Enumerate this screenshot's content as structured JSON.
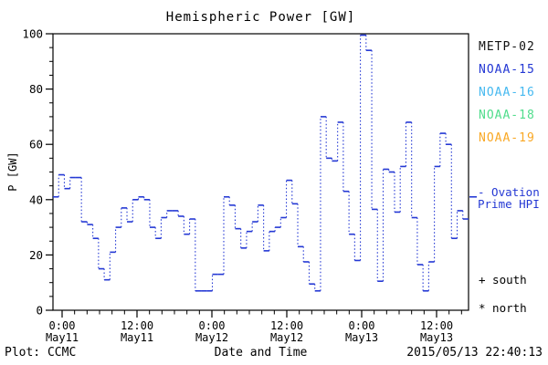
{
  "title": "Hemispheric Power [GW]",
  "legend": {
    "satellites": [
      {
        "label": "METP-02",
        "color": "#111111"
      },
      {
        "label": "NOAA-15",
        "color": "#2438d4"
      },
      {
        "label": "NOAA-16",
        "color": "#46b9f0"
      },
      {
        "label": "NOAA-18",
        "color": "#50dd8c"
      },
      {
        "label": "NOAA-19",
        "color": "#f9a825"
      }
    ]
  },
  "annotations": {
    "ovation_line1": "- Ovation",
    "ovation_line2": "Prime HPI",
    "ovation_color": "#2438d4",
    "south_marker": "+ south",
    "north_marker": "* north"
  },
  "footer": {
    "plot_credit": "Plot: CCMC",
    "xaxis_title": "Date and Time",
    "timestamp": "2015/05/13 22:40:13"
  },
  "chart_data": {
    "type": "line",
    "style": "steps, solid horizontal segments with dotted vertical connectors",
    "title": "Hemispheric Power [GW]",
    "xlabel": "Date and Time",
    "ylabel": "P [GW]",
    "ylim": [
      0,
      100
    ],
    "y_ticks": [
      0,
      20,
      40,
      60,
      80,
      100
    ],
    "y_minor_step": 5,
    "x_ticks": [
      {
        "time": "0:00",
        "date": "May11",
        "hour": 0
      },
      {
        "time": "12:00",
        "date": "May11",
        "hour": 12
      },
      {
        "time": "0:00",
        "date": "May12",
        "hour": 24
      },
      {
        "time": "12:00",
        "date": "May12",
        "hour": 36
      },
      {
        "time": "0:00",
        "date": "May13",
        "hour": 48
      },
      {
        "time": "12:00",
        "date": "May13",
        "hour": 60
      }
    ],
    "x_minor_step_hours": 2,
    "x_range_hours": [
      -1.5,
      65.1
    ],
    "grid": false,
    "legend_position": "right, outside plot",
    "line_color": "#2438d4",
    "ovation_ref_value_gw": 41,
    "series": [
      {
        "name": "Ovation Prime HPI",
        "unit": "GW",
        "cadence": "~hourly steps from May10 ~22:30 to May13 ~17:30",
        "values": [
          41,
          49,
          44,
          48,
          48,
          32,
          31,
          26,
          15,
          11,
          21,
          30,
          37,
          32,
          40,
          41,
          40,
          30,
          26,
          33.5,
          36,
          36,
          34,
          27.5,
          33,
          7,
          7,
          7,
          13,
          13,
          41,
          38,
          29.5,
          22.5,
          28.5,
          32,
          38,
          21.5,
          28.5,
          30,
          33.5,
          47,
          38.5,
          23,
          17.5,
          9.5,
          7,
          70,
          55,
          54,
          68,
          43,
          27.5,
          18,
          99.5,
          94,
          36.5,
          10.5,
          51,
          50,
          35.5,
          52,
          68,
          33.5,
          16.5,
          7,
          17.5,
          52,
          64,
          60,
          26,
          36,
          33
        ]
      }
    ]
  }
}
